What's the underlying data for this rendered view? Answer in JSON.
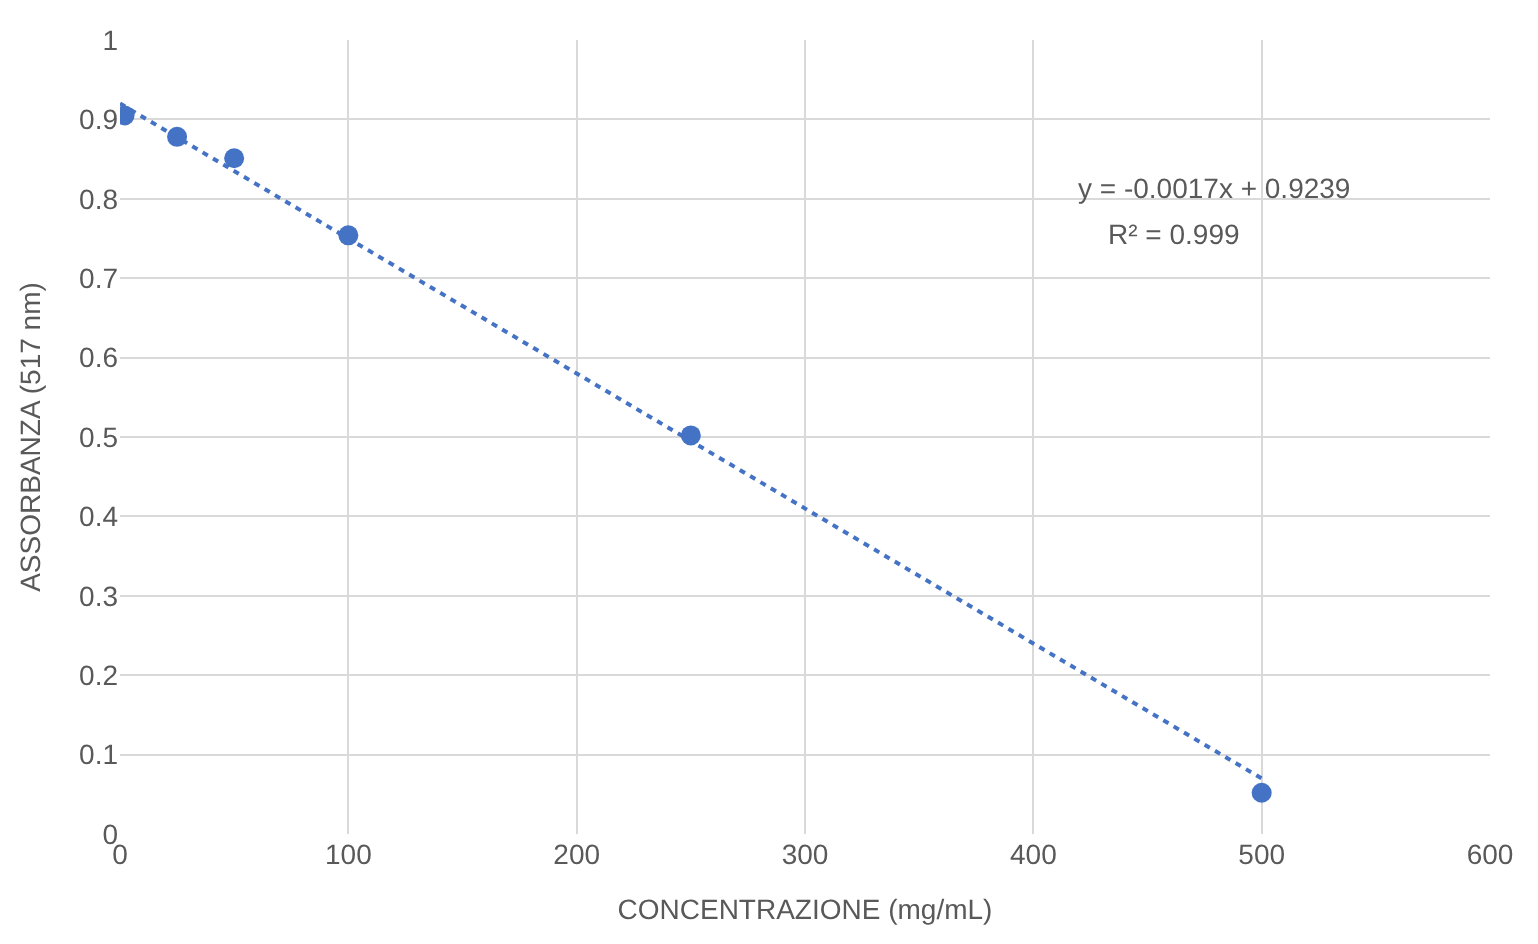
{
  "chart_data": {
    "type": "scatter",
    "xlabel": "CONCENTRAZIONE (mg/mL)",
    "ylabel": "ASSORBANZA (517 nm)",
    "x": [
      2,
      25,
      50,
      100,
      250,
      500
    ],
    "series": [
      {
        "color": "#4472c4",
        "values": [
          0.905,
          0.878,
          0.851,
          0.754,
          0.502,
          0.052
        ],
        "marker": "circle"
      },
      {
        "type": "line",
        "color": "#4472c4",
        "x": [
          0,
          500
        ],
        "values": [
          0.92,
          0.07
        ],
        "line_style": "dotted",
        "marker": "none"
      }
    ],
    "annotations": [
      "y = -0.0017x + 0.9239",
      "R² = 0.999"
    ],
    "xlim": [
      0,
      600
    ],
    "xticks": [
      0,
      100,
      200,
      300,
      400,
      500,
      600
    ],
    "ylim": [
      0,
      1
    ],
    "yticks": [
      0,
      0.1,
      0.2,
      0.3,
      0.4,
      0.5,
      0.6,
      0.7,
      0.8,
      0.9,
      1
    ],
    "grid": true
  }
}
